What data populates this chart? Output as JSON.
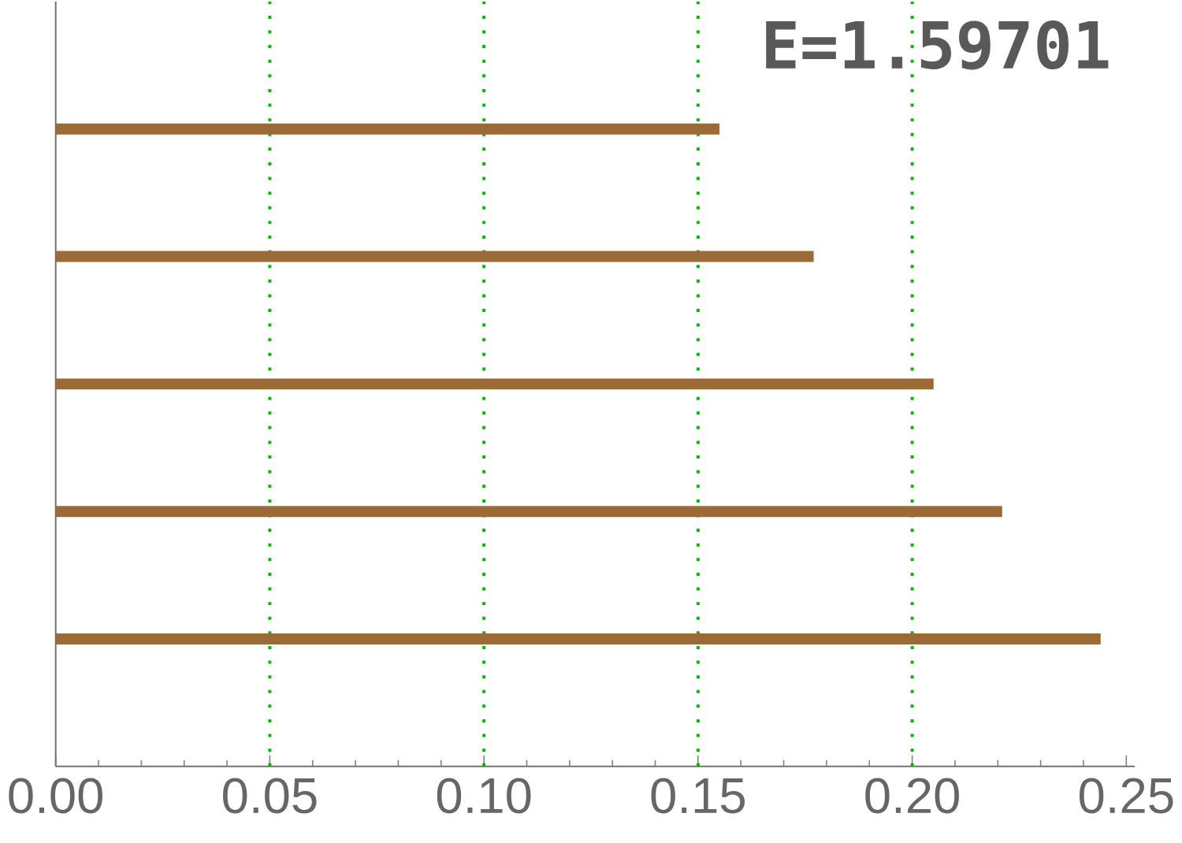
{
  "chart_data": {
    "type": "bar",
    "orientation": "horizontal",
    "tick_labels": "x",
    "categories": [
      null,
      null,
      null,
      null,
      null
    ],
    "values": [
      0.155,
      0.177,
      0.205,
      0.221,
      0.244
    ],
    "color": "#9c6a36",
    "xlim": [
      0,
      0.252
    ],
    "xticks": [
      {
        "value": 0,
        "label": "0.00"
      },
      0.05,
      {
        "value": 0.1,
        "label": "0.10"
      },
      0.15,
      {
        "value": 0.2,
        "label": "0.20"
      },
      0.25
    ],
    "ref_lines": [
      {
        "axis": "x",
        "value": 0.05,
        "color": "#00bb00",
        "line_style": "dotted"
      },
      {
        "axis": "x",
        "value": 0.1,
        "color": "#00bb00",
        "line_style": "dotted"
      },
      {
        "axis": "x",
        "value": 0.15,
        "color": "#00bb00",
        "line_style": "dotted"
      },
      {
        "axis": "x",
        "value": 0.2,
        "color": "#00bb00",
        "line_style": "dotted"
      }
    ],
    "annotations": [
      "E=1.59701"
    ]
  }
}
